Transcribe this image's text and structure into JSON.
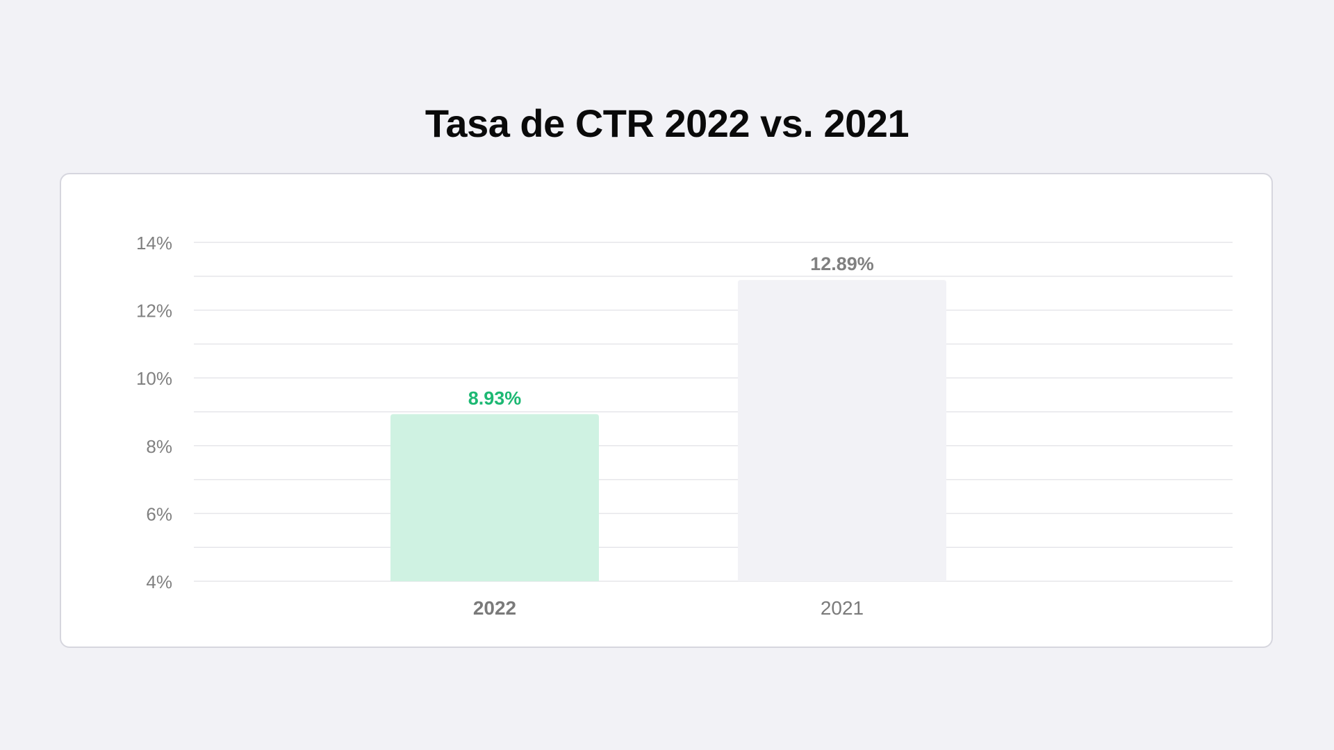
{
  "chart_data": {
    "type": "bar",
    "title": "Tasa de CTR 2022 vs. 2021",
    "xlabel": "",
    "ylabel": "",
    "categories": [
      "2022",
      "2021"
    ],
    "values": [
      8.93,
      12.89
    ],
    "value_labels": [
      "8.93%",
      "12.89%"
    ],
    "ylim": [
      4,
      14
    ],
    "y_ticks": [
      14,
      12,
      10,
      8,
      6,
      4
    ],
    "y_tick_labels": [
      "14%",
      "12%",
      "10%",
      "8%",
      "6%",
      "4%"
    ],
    "minor_gridlines": true,
    "grid": true,
    "legend": "none",
    "bar_colors": [
      "#cff2e2",
      "#f2f2f6"
    ],
    "value_label_colors": [
      "#1db873",
      "#808080"
    ],
    "category_label_colors": [
      "#7a7a7a",
      "#7a7a7a"
    ],
    "category_label_weights": [
      "bold",
      "normal"
    ]
  },
  "colors": {
    "background": "#f2f2f6",
    "card": "#ffffff",
    "card_border": "#d6d6de",
    "gridline": "#e6e6ea",
    "tick_text": "#808080",
    "title_text": "#0a0a0a"
  }
}
